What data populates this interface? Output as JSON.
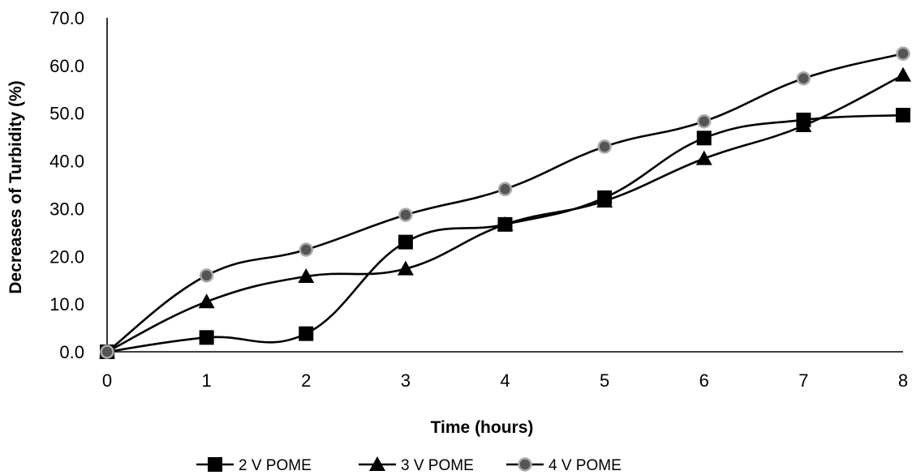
{
  "chart_data": {
    "type": "line",
    "xlabel": "Time (hours)",
    "ylabel": "Decreases of Turbidity (%)",
    "x": [
      0,
      1,
      2,
      3,
      4,
      5,
      6,
      7,
      8
    ],
    "xlim": [
      0,
      8
    ],
    "ylim": [
      0,
      70
    ],
    "x_ticks": [
      "0",
      "1",
      "2",
      "3",
      "4",
      "5",
      "6",
      "7",
      "8"
    ],
    "y_ticks": [
      "0.0",
      "10.0",
      "20.0",
      "30.0",
      "40.0",
      "50.0",
      "60.0",
      "70.0"
    ],
    "grid": false,
    "smooth": true,
    "legend_position": "bottom",
    "series": [
      {
        "name": "2 V POME",
        "marker": "square",
        "color": "#000000",
        "values": [
          0,
          3.0,
          3.8,
          23.0,
          26.7,
          32.3,
          44.8,
          48.6,
          49.6
        ]
      },
      {
        "name": "3 V POME",
        "marker": "triangle",
        "color": "#000000",
        "values": [
          0,
          10.5,
          15.8,
          17.4,
          26.7,
          31.6,
          40.5,
          47.4,
          58.0
        ]
      },
      {
        "name": "4 V POME",
        "marker": "circle",
        "color": "#000000",
        "marker_fill": "#555555",
        "marker_edge": "#aaaaaa",
        "values": [
          0,
          16.0,
          21.4,
          28.7,
          34.1,
          43.0,
          48.3,
          57.3,
          62.5
        ]
      }
    ]
  }
}
